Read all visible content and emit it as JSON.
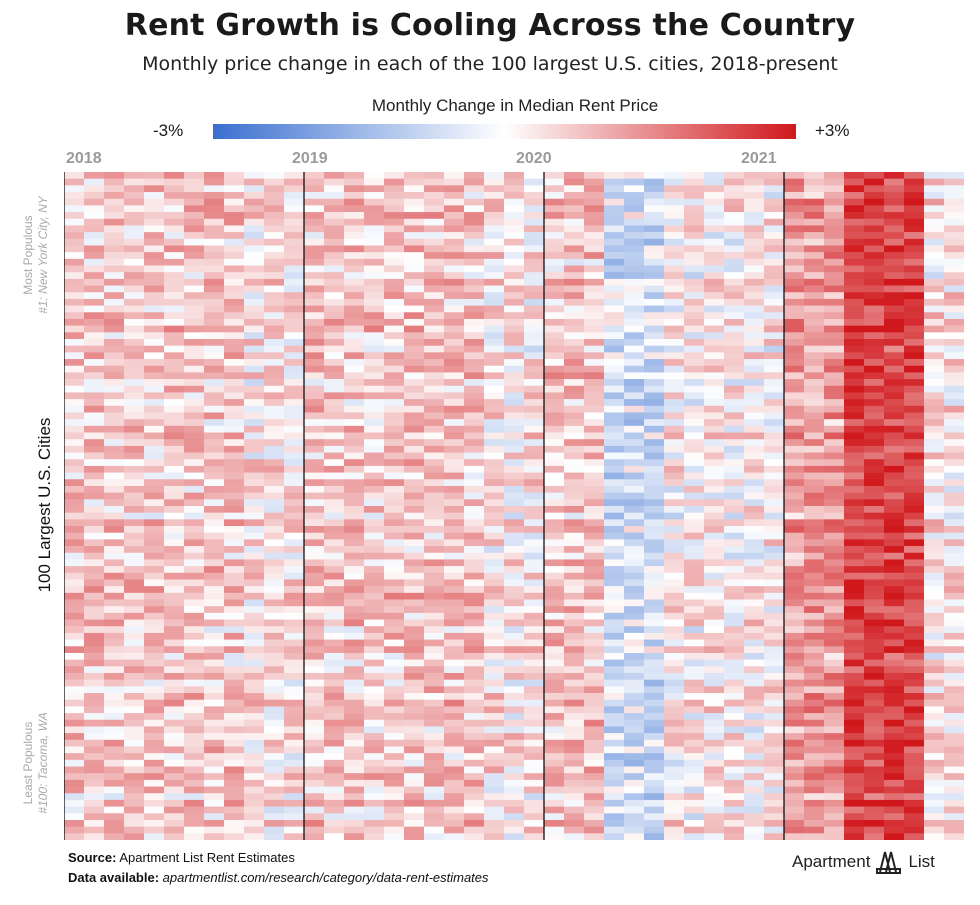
{
  "header": {
    "title": "Rent Growth is Cooling Across the Country",
    "subtitle": "Monthly price change in each of the 100 largest U.S. cities, 2018-present"
  },
  "legend": {
    "title": "Monthly Change in Median Rent Price",
    "min_label": "-3%",
    "max_label": "+3%",
    "colors": {
      "negative": "#3a6fd0",
      "neutral": "#ffffff",
      "positive": "#d0181c"
    }
  },
  "axes": {
    "y_label": "100 Largest U.S. Cities",
    "top_side_label": "Most Populous",
    "top_side_example": "#1: New York City, NY",
    "bottom_side_label": "Least Populous",
    "bottom_side_example": "#100: Tacoma, WA",
    "years": [
      "2018",
      "2019",
      "2020",
      "2021"
    ]
  },
  "footer": {
    "source_label": "Source:",
    "source_text": "Apartment List Rent Estimates",
    "data_label": "Data available:",
    "data_text": "apartmentlist.com/research/category/data-rent-estimates",
    "logo_left": "Apartment",
    "logo_right": "List"
  },
  "chart_data": {
    "type": "heatmap",
    "title": "Rent Growth is Cooling Across the Country",
    "subtitle": "Monthly price change in each of the 100 largest U.S. cities, 2018-present",
    "rows": 100,
    "columns": 45,
    "x_unit": "month",
    "x_start": "2018-01",
    "x_year_labels": [
      "2018",
      "2019",
      "2020",
      "2021"
    ],
    "y_label": "100 Largest U.S. Cities",
    "color_scale": {
      "min": -3,
      "max": 3,
      "unit": "%"
    },
    "period_profile": [
      {
        "period": "2018",
        "typical_change_pct": 0.6
      },
      {
        "period": "2019",
        "typical_change_pct": 0.5
      },
      {
        "period": "2020 Jan-Mar",
        "typical_change_pct": 0.6
      },
      {
        "period": "2020 Apr-Jun",
        "typical_change_pct": -0.5
      },
      {
        "period": "2020 Jul-Dec",
        "typical_change_pct": 0.2
      },
      {
        "period": "2021 Jan-Mar",
        "typical_change_pct": 1.2
      },
      {
        "period": "2021 Apr-Jul",
        "typical_change_pct": 2.3
      },
      {
        "period": "2021 Aug-Sep",
        "typical_change_pct": 0.3
      }
    ]
  }
}
